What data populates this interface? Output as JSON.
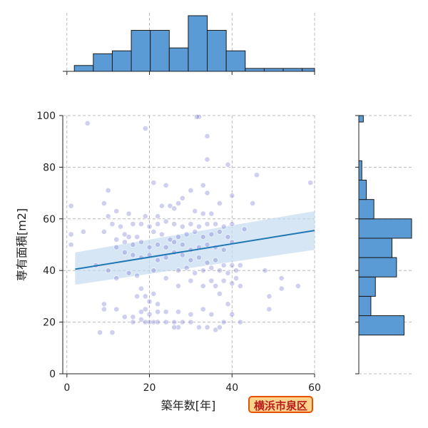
{
  "chart_data": {
    "type": "scatter",
    "title": "",
    "xlabel": "築年数[年]",
    "ylabel": "専有面積[m2]",
    "xlim": [
      -1,
      60
    ],
    "ylim": [
      0,
      100
    ],
    "xticks": [
      0,
      20,
      40,
      60
    ],
    "yticks": [
      0,
      20,
      40,
      60,
      80,
      100
    ],
    "grid": true,
    "badge": "横浜市泉区",
    "colors": {
      "points": "#6a6ad0",
      "regression_line": "#1f77b4",
      "confidence_band": "#c6dbef",
      "histogram": "#5b9bd5",
      "histogram_edge": "#1a1a1a",
      "badge_fill": "#fbd38d",
      "badge_border": "#e65100",
      "badge_text": "#b71c1c"
    },
    "regression": {
      "x": [
        2,
        60
      ],
      "y": [
        40.5,
        55.5
      ],
      "band_lower": [
        34.5,
        48
      ],
      "band_upper": [
        47,
        63
      ]
    },
    "points": [
      [
        5,
        97
      ],
      [
        32,
        99.5
      ],
      [
        31.5,
        99.5
      ],
      [
        19,
        95
      ],
      [
        34,
        92
      ],
      [
        39,
        81
      ],
      [
        34,
        83
      ],
      [
        46,
        77
      ],
      [
        21,
        74
      ],
      [
        59,
        74
      ],
      [
        24,
        73
      ],
      [
        33,
        73
      ],
      [
        30,
        71
      ],
      [
        10,
        71
      ],
      [
        34,
        70
      ],
      [
        40,
        69
      ],
      [
        28,
        68
      ],
      [
        27,
        66
      ],
      [
        37,
        66
      ],
      [
        45,
        66
      ],
      [
        1,
        65
      ],
      [
        9,
        66
      ],
      [
        23,
        65
      ],
      [
        25,
        65
      ],
      [
        26,
        64
      ],
      [
        12,
        63
      ],
      [
        15,
        62
      ],
      [
        10,
        61
      ],
      [
        19,
        61
      ],
      [
        22,
        61
      ],
      [
        31,
        63
      ],
      [
        33,
        62
      ],
      [
        35,
        62
      ],
      [
        18,
        58
      ],
      [
        20,
        57
      ],
      [
        22,
        58
      ],
      [
        24,
        59
      ],
      [
        26,
        58
      ],
      [
        28,
        57
      ],
      [
        30,
        58
      ],
      [
        32,
        57
      ],
      [
        34,
        58
      ],
      [
        36,
        58
      ],
      [
        38,
        57
      ],
      [
        40,
        58
      ],
      [
        11,
        58
      ],
      [
        13,
        57
      ],
      [
        16,
        58
      ],
      [
        4,
        55
      ],
      [
        9,
        55
      ],
      [
        14,
        54
      ],
      [
        15,
        53
      ],
      [
        17,
        53
      ],
      [
        21,
        55
      ],
      [
        23,
        54
      ],
      [
        25,
        52
      ],
      [
        27,
        53
      ],
      [
        29,
        54
      ],
      [
        31,
        55
      ],
      [
        33,
        53
      ],
      [
        35,
        54
      ],
      [
        37,
        55
      ],
      [
        39,
        53
      ],
      [
        43,
        56
      ],
      [
        1,
        54
      ],
      [
        12,
        52
      ],
      [
        14,
        51
      ],
      [
        16,
        50
      ],
      [
        18,
        51
      ],
      [
        20,
        49
      ],
      [
        22,
        50
      ],
      [
        24,
        49
      ],
      [
        26,
        51
      ],
      [
        28,
        50
      ],
      [
        30,
        48
      ],
      [
        32,
        49
      ],
      [
        34,
        50
      ],
      [
        36,
        49
      ],
      [
        38,
        48
      ],
      [
        40,
        51
      ],
      [
        1,
        50
      ],
      [
        12,
        49
      ],
      [
        14,
        47
      ],
      [
        16,
        46
      ],
      [
        18,
        45
      ],
      [
        20,
        46
      ],
      [
        22,
        44
      ],
      [
        24,
        45
      ],
      [
        26,
        47
      ],
      [
        28,
        46
      ],
      [
        30,
        44
      ],
      [
        32,
        45
      ],
      [
        34,
        43
      ],
      [
        36,
        44
      ],
      [
        38,
        42
      ],
      [
        40,
        42
      ],
      [
        42,
        42
      ],
      [
        7,
        42
      ],
      [
        10,
        40
      ],
      [
        15,
        39
      ],
      [
        21,
        40
      ],
      [
        27,
        40
      ],
      [
        29,
        41
      ],
      [
        31,
        39
      ],
      [
        33,
        40
      ],
      [
        35,
        41
      ],
      [
        37,
        40
      ],
      [
        39,
        39
      ],
      [
        41,
        40
      ],
      [
        48,
        40
      ],
      [
        12,
        37
      ],
      [
        17,
        38
      ],
      [
        24,
        37
      ],
      [
        30,
        36
      ],
      [
        35,
        36
      ],
      [
        38,
        36
      ],
      [
        41,
        37
      ],
      [
        52,
        37
      ],
      [
        27,
        34
      ],
      [
        33,
        34
      ],
      [
        36,
        34
      ],
      [
        40,
        35
      ],
      [
        42,
        34
      ],
      [
        52,
        33
      ],
      [
        56,
        34
      ],
      [
        18,
        33
      ],
      [
        19,
        30
      ],
      [
        21,
        31
      ],
      [
        17,
        30
      ],
      [
        37,
        31
      ],
      [
        49,
        30
      ],
      [
        20,
        28
      ],
      [
        22,
        27
      ],
      [
        9,
        27
      ],
      [
        39,
        27
      ],
      [
        12,
        25
      ],
      [
        19,
        25
      ],
      [
        33,
        25
      ],
      [
        18,
        24
      ],
      [
        20,
        23
      ],
      [
        22,
        24
      ],
      [
        24,
        24
      ],
      [
        27,
        24
      ],
      [
        30,
        23
      ],
      [
        35,
        23
      ],
      [
        40,
        23
      ],
      [
        49,
        25
      ],
      [
        14,
        22
      ],
      [
        16,
        22
      ],
      [
        18,
        21
      ],
      [
        9,
        25
      ],
      [
        20,
        20
      ],
      [
        21,
        20
      ],
      [
        22,
        20
      ],
      [
        24,
        20
      ],
      [
        26,
        20
      ],
      [
        28,
        20
      ],
      [
        30,
        20
      ],
      [
        19,
        20
      ],
      [
        38,
        20
      ],
      [
        16,
        20
      ],
      [
        27,
        18
      ],
      [
        32,
        18
      ],
      [
        34,
        18
      ],
      [
        36,
        17
      ],
      [
        37,
        18
      ],
      [
        8,
        16
      ],
      [
        11,
        16
      ],
      [
        42,
        20
      ],
      [
        26,
        18
      ]
    ],
    "histogram_x": {
      "bin_edges": [
        1.8,
        6.4,
        11.0,
        15.6,
        20.2,
        24.8,
        29.4,
        34.0,
        38.6,
        43.2,
        47.8,
        52.4,
        57.0,
        61.6
      ],
      "counts": [
        2,
        6,
        7,
        14,
        14,
        8,
        19,
        14,
        7,
        1,
        1,
        1,
        1
      ]
    },
    "histogram_y": {
      "bin_edges": [
        15,
        22.5,
        30,
        37.5,
        45,
        52.5,
        60,
        67.5,
        75,
        82.5,
        90,
        97.5,
        100
      ],
      "counts": [
        30,
        8,
        11,
        25,
        22,
        35,
        10,
        5,
        2,
        0,
        0,
        3
      ]
    }
  }
}
